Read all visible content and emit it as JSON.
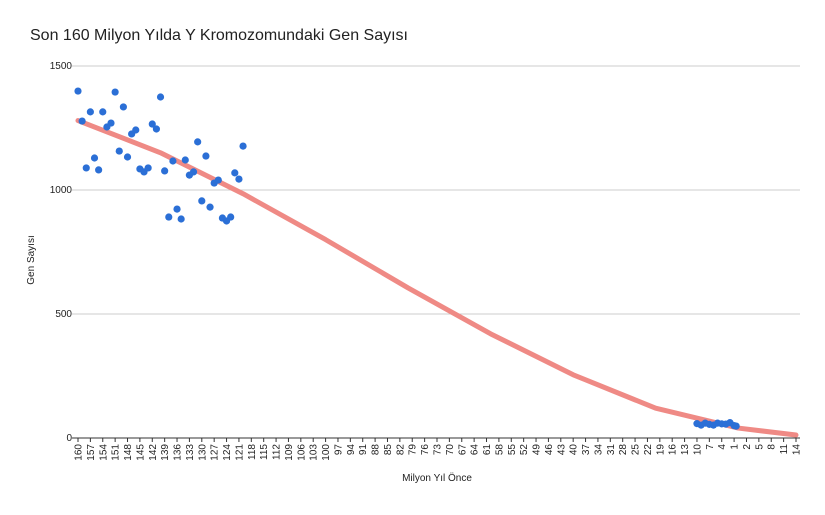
{
  "chart_data": {
    "type": "scatter",
    "title": "Son 160 Milyon Yılda Y Kromozomundaki Gen Sayısı",
    "x_label": "Milyon Yıl Önce",
    "y_label": "Gen Sayısı",
    "xlim": [
      160,
      -14
    ],
    "ylim": [
      0,
      1500
    ],
    "yticks": [
      0,
      500,
      1000,
      1500
    ],
    "xticks": [
      160,
      157,
      154,
      151,
      148,
      145,
      142,
      139,
      136,
      133,
      130,
      127,
      124,
      121,
      118,
      115,
      112,
      109,
      106,
      103,
      100,
      97,
      94,
      91,
      88,
      85,
      82,
      79,
      76,
      73,
      70,
      67,
      64,
      61,
      58,
      55,
      52,
      49,
      46,
      43,
      40,
      37,
      34,
      31,
      28,
      25,
      22,
      19,
      16,
      13,
      10,
      7,
      4,
      1,
      {
        "value": -2,
        "label": "2"
      },
      {
        "value": -5,
        "label": "5"
      },
      {
        "value": -8,
        "label": "8"
      },
      {
        "value": -11,
        "label": "11"
      },
      {
        "value": -14,
        "label": "14"
      }
    ],
    "grid": true,
    "series": [
      {
        "name": "Gen Sayısı",
        "color": "#2b6fd6",
        "x": [
          160,
          159,
          158,
          157,
          156,
          155,
          154,
          153,
          152,
          151,
          150,
          149,
          148,
          147,
          146,
          145,
          144,
          143,
          142,
          141,
          140,
          139,
          138,
          137,
          136,
          135,
          134,
          133,
          132,
          131,
          130,
          129,
          128,
          127,
          126,
          125,
          124,
          123,
          122,
          121,
          120,
          10,
          9,
          8,
          7,
          6,
          5,
          4,
          3,
          2,
          1,
          0.5
        ],
        "values": [
          1399,
          1278,
          1089,
          1315,
          1129,
          1081,
          1315,
          1254,
          1270,
          1395,
          1157,
          1335,
          1133,
          1226,
          1242,
          1085,
          1073,
          1089,
          1266,
          1246,
          1375,
          1077,
          891,
          1117,
          923,
          883,
          1121,
          1060,
          1073,
          1194,
          956,
          1137,
          931,
          1028,
          1040,
          887,
          875,
          891,
          1069,
          1044,
          1177,
          58,
          52,
          60,
          55,
          52,
          60,
          57,
          56,
          62,
          50,
          48
        ]
      }
    ],
    "trendline": {
      "color": "#ef8a85",
      "x": [
        160,
        140,
        120,
        100,
        80,
        60,
        40,
        20,
        0,
        -14
      ],
      "values": [
        1280,
        1150,
        985,
        800,
        605,
        420,
        255,
        120,
        40,
        12
      ]
    }
  }
}
